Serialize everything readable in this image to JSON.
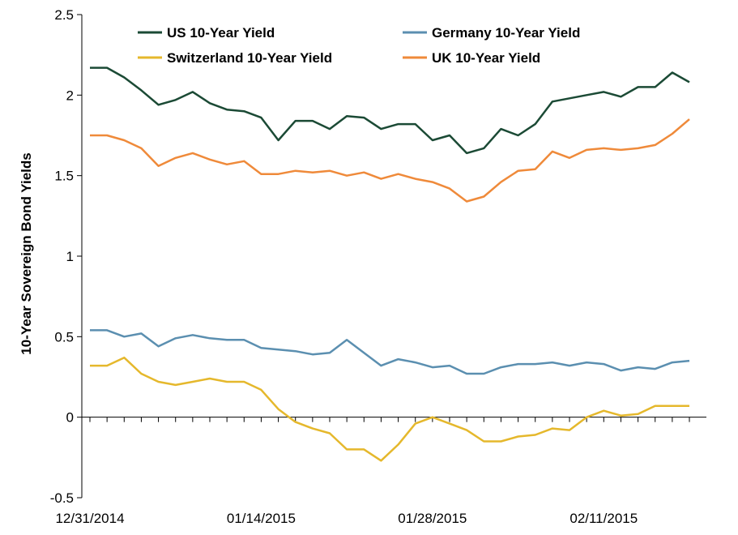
{
  "chart_data": {
    "type": "line",
    "ylabel": "10-Year Sovereign Bond Yields",
    "ylim": [
      -0.5,
      2.5
    ],
    "yticks": [
      "-0.5",
      "0",
      "0.5",
      "1",
      "1.5",
      "2",
      "2.5"
    ],
    "x": [
      "12/31/2014",
      "01/01/2015",
      "01/02/2015",
      "01/05/2015",
      "01/06/2015",
      "01/07/2015",
      "01/08/2015",
      "01/09/2015",
      "01/12/2015",
      "01/13/2015",
      "01/14/2015",
      "01/15/2015",
      "01/16/2015",
      "01/19/2015",
      "01/20/2015",
      "01/21/2015",
      "01/22/2015",
      "01/23/2015",
      "01/26/2015",
      "01/27/2015",
      "01/28/2015",
      "01/29/2015",
      "01/30/2015",
      "02/02/2015",
      "02/03/2015",
      "02/04/2015",
      "02/05/2015",
      "02/06/2015",
      "02/09/2015",
      "02/10/2015",
      "02/11/2015",
      "02/12/2015",
      "02/13/2015",
      "02/16/2015",
      "02/17/2015",
      "02/18/2015"
    ],
    "xtick_labels": [
      "12/31/2014",
      "01/14/2015",
      "01/28/2015",
      "02/11/2015"
    ],
    "xtick_label_indices": [
      0,
      10,
      20,
      30
    ],
    "grid": false,
    "legend_position": "top",
    "series": [
      {
        "name": "US 10-Year Yield",
        "color": "#1b4a35",
        "values": [
          2.17,
          2.17,
          2.11,
          2.03,
          1.94,
          1.97,
          2.02,
          1.95,
          1.91,
          1.9,
          1.86,
          1.72,
          1.84,
          1.84,
          1.79,
          1.87,
          1.86,
          1.79,
          1.82,
          1.82,
          1.72,
          1.75,
          1.64,
          1.67,
          1.79,
          1.75,
          1.82,
          1.96,
          1.98,
          2.0,
          2.02,
          1.99,
          2.05,
          2.05,
          2.14,
          2.08
        ]
      },
      {
        "name": "Germany 10-Year Yield",
        "color": "#5b8fb0",
        "values": [
          0.54,
          0.54,
          0.5,
          0.52,
          0.44,
          0.49,
          0.51,
          0.49,
          0.48,
          0.48,
          0.43,
          0.42,
          0.41,
          0.39,
          0.4,
          0.48,
          0.4,
          0.32,
          0.36,
          0.34,
          0.31,
          0.32,
          0.27,
          0.27,
          0.31,
          0.33,
          0.33,
          0.34,
          0.32,
          0.34,
          0.33,
          0.29,
          0.31,
          0.3,
          0.34,
          0.35
        ]
      },
      {
        "name": "Switzerland 10-Year Yield",
        "color": "#e5b82c",
        "values": [
          0.32,
          0.32,
          0.37,
          0.27,
          0.22,
          0.2,
          0.22,
          0.24,
          0.22,
          0.22,
          0.17,
          0.05,
          -0.03,
          -0.07,
          -0.1,
          -0.2,
          -0.2,
          -0.27,
          -0.17,
          -0.04,
          0.0,
          -0.04,
          -0.08,
          -0.15,
          -0.15,
          -0.12,
          -0.11,
          -0.07,
          -0.08,
          0.0,
          0.04,
          0.01,
          0.02,
          0.07,
          0.07,
          0.07
        ]
      },
      {
        "name": "UK 10-Year Yield",
        "color": "#ef8a3a",
        "values": [
          1.75,
          1.75,
          1.72,
          1.67,
          1.56,
          1.61,
          1.64,
          1.6,
          1.57,
          1.59,
          1.51,
          1.51,
          1.53,
          1.52,
          1.53,
          1.5,
          1.52,
          1.48,
          1.51,
          1.48,
          1.46,
          1.42,
          1.34,
          1.37,
          1.46,
          1.53,
          1.54,
          1.65,
          1.61,
          1.66,
          1.67,
          1.66,
          1.67,
          1.69,
          1.76,
          1.85
        ]
      }
    ]
  }
}
